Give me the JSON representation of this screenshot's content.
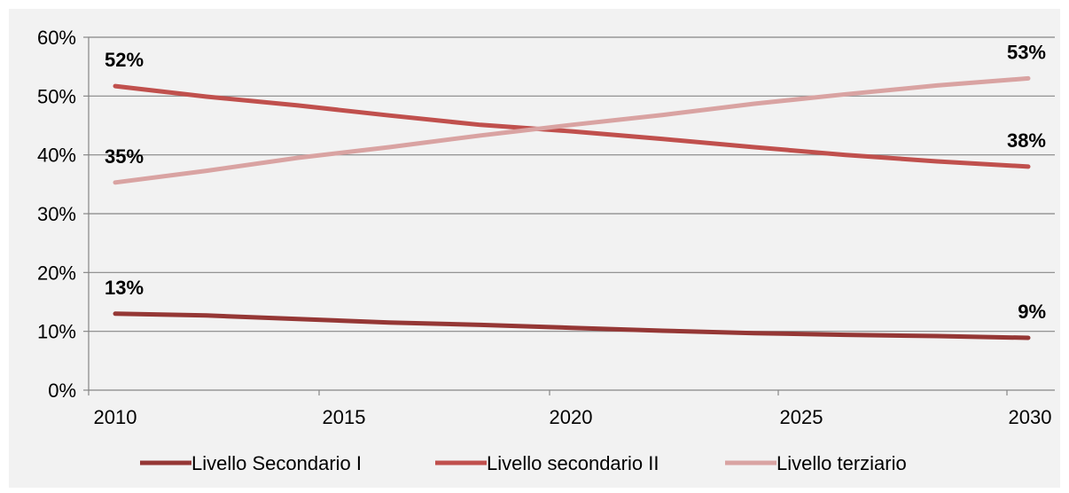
{
  "chart_data": {
    "type": "line",
    "title": "",
    "xlabel": "",
    "ylabel": "",
    "x": [
      2010,
      2012,
      2014,
      2016,
      2018,
      2020,
      2022,
      2024,
      2026,
      2028,
      2030
    ],
    "xticks": [
      "2010",
      "2015",
      "2020",
      "2025",
      "2030"
    ],
    "yticks": [
      "0%",
      "10%",
      "20%",
      "30%",
      "40%",
      "50%",
      "60%"
    ],
    "ylim": [
      0,
      0.6
    ],
    "xlim": [
      2010,
      2030
    ],
    "grid": true,
    "legend_position": "bottom",
    "series": [
      {
        "name": "Livello Secondario I",
        "color": "#953735",
        "values": [
          0.13,
          0.127,
          0.121,
          0.115,
          0.111,
          0.106,
          0.101,
          0.097,
          0.094,
          0.092,
          0.089
        ],
        "labels": [
          {
            "index": 0,
            "text": "13%"
          },
          {
            "index": 10,
            "text": "9%"
          }
        ]
      },
      {
        "name": "Livello secondario II",
        "color": "#c0504d",
        "values": [
          0.517,
          0.499,
          0.484,
          0.467,
          0.451,
          0.44,
          0.427,
          0.413,
          0.4,
          0.389,
          0.38
        ],
        "labels": [
          {
            "index": 0,
            "text": "52%"
          },
          {
            "index": 10,
            "text": "38%"
          }
        ]
      },
      {
        "name": "Livello terziario",
        "color": "#d9a3a2",
        "values": [
          0.353,
          0.373,
          0.395,
          0.413,
          0.433,
          0.451,
          0.468,
          0.487,
          0.503,
          0.518,
          0.53
        ],
        "labels": [
          {
            "index": 0,
            "text": "35%"
          },
          {
            "index": 10,
            "text": "53%"
          }
        ]
      }
    ]
  }
}
